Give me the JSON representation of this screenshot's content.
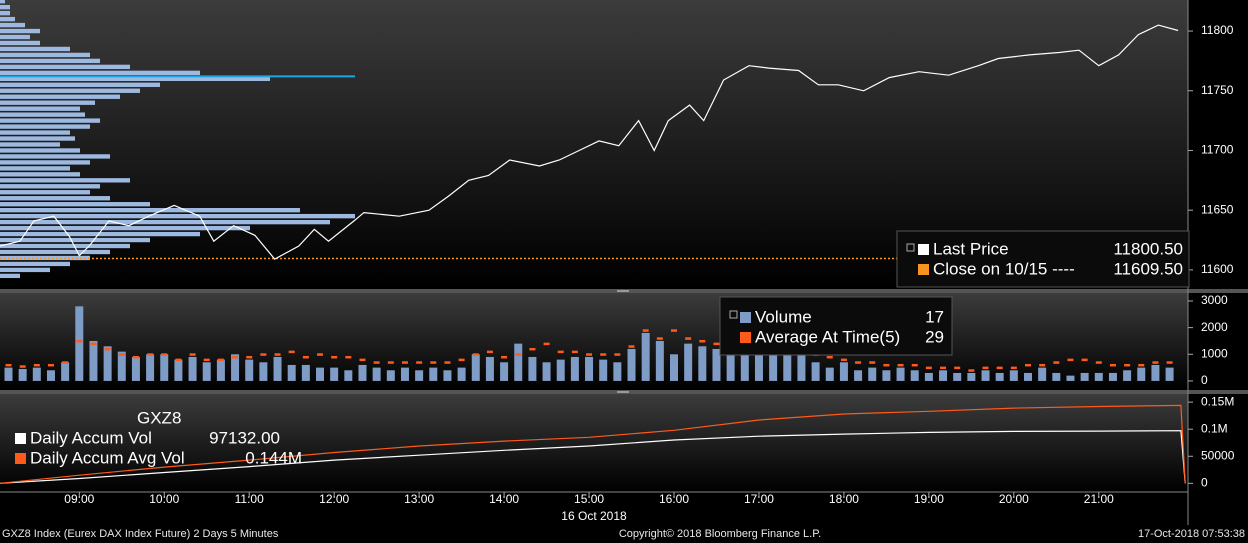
{
  "chart_data": [
    {
      "type": "line",
      "x": [
        "08:04",
        "08:18",
        "08:28",
        "08:42",
        "08:53",
        "09:00",
        "09:07",
        "09:21",
        "09:35",
        "09:49",
        "10:07",
        "10:25",
        "10:35",
        "10:49",
        "11:04",
        "11:18",
        "11:35",
        "11:46",
        "11:56",
        "12:14",
        "12:21",
        "12:46",
        "13:07",
        "13:21",
        "13:35",
        "13:49",
        "14:04",
        "14:25",
        "14:39",
        "14:53",
        "15:07",
        "15:21",
        "15:35",
        "15:46",
        "15:56",
        "16:11",
        "16:21",
        "16:35",
        "16:53",
        "17:07",
        "17:28",
        "17:42",
        "17:56",
        "18:14",
        "18:32",
        "18:53",
        "19:14",
        "19:35",
        "19:49",
        "20:11",
        "20:32",
        "20:46",
        "21:00",
        "21:14",
        "21:28",
        "21:42",
        "21:56"
      ],
      "series": [
        {
          "name": "Last Price",
          "color": "#ffffff",
          "legend_value": "11800.50",
          "values": [
            11620,
            11624,
            11641,
            11645,
            11628,
            11612,
            11620,
            11641,
            11637,
            11645,
            11654,
            11645,
            11624,
            11637,
            11629,
            11609,
            11620,
            11634,
            11624,
            11641,
            11648,
            11645,
            11650,
            11662,
            11675,
            11679,
            11692,
            11687,
            11692,
            11700,
            11708,
            11704,
            11725,
            11700,
            11725,
            11738,
            11725,
            11759,
            11771,
            11769,
            11767,
            11755,
            11755,
            11750,
            11761,
            11766,
            11763,
            11771,
            11777,
            11780,
            11782,
            11784,
            11771,
            11780,
            11797,
            11805,
            11800.5
          ]
        }
      ],
      "reference_lines": [
        {
          "name": "Close on 10/15 ----",
          "color": "#f7931e",
          "value": 11609.5,
          "legend_value": "11609.50"
        }
      ],
      "volume_profile": {
        "color": "#9db9e0",
        "prices": [
          11595,
          11600,
          11605,
          11610,
          11615,
          11620,
          11625,
          11630,
          11635,
          11640,
          11645,
          11650,
          11655,
          11660,
          11665,
          11670,
          11675,
          11680,
          11685,
          11690,
          11695,
          11700,
          11705,
          11710,
          11715,
          11720,
          11725,
          11730,
          11735,
          11740,
          11745,
          11750,
          11755,
          11760,
          11765,
          11770,
          11775,
          11780,
          11785,
          11790,
          11795,
          11800,
          11805,
          11810,
          11815,
          11820,
          11825
        ],
        "values": [
          20,
          50,
          70,
          90,
          110,
          130,
          150,
          200,
          250,
          330,
          355,
          300,
          150,
          110,
          90,
          100,
          130,
          80,
          70,
          90,
          110,
          80,
          60,
          75,
          70,
          90,
          100,
          85,
          80,
          95,
          120,
          140,
          160,
          270,
          200,
          130,
          100,
          90,
          70,
          40,
          30,
          40,
          25,
          15,
          10,
          10,
          5
        ]
      },
      "poc": {
        "value": 11762,
        "color": "#1fa5e0"
      },
      "ylim": [
        11584,
        11826
      ],
      "yticks": [
        11600,
        11650,
        11700,
        11750,
        11800
      ]
    },
    {
      "type": "bar",
      "x": [
        "08:10",
        "08:20",
        "08:30",
        "08:40",
        "08:50",
        "09:00",
        "09:10",
        "09:20",
        "09:30",
        "09:40",
        "09:50",
        "10:00",
        "10:10",
        "10:20",
        "10:30",
        "10:40",
        "10:50",
        "11:00",
        "11:10",
        "11:20",
        "11:30",
        "11:40",
        "11:50",
        "12:00",
        "12:10",
        "12:20",
        "12:30",
        "12:40",
        "12:50",
        "13:00",
        "13:10",
        "13:20",
        "13:30",
        "13:40",
        "13:50",
        "14:00",
        "14:10",
        "14:20",
        "14:30",
        "14:40",
        "14:50",
        "15:00",
        "15:10",
        "15:20",
        "15:30",
        "15:40",
        "15:50",
        "16:00",
        "16:10",
        "16:20",
        "16:30",
        "16:40",
        "16:50",
        "17:00",
        "17:10",
        "17:20",
        "17:30",
        "17:40",
        "17:50",
        "18:00",
        "18:10",
        "18:20",
        "18:30",
        "18:40",
        "18:50",
        "19:00",
        "19:10",
        "19:20",
        "19:30",
        "19:40",
        "19:50",
        "20:00",
        "20:10",
        "20:20",
        "20:30",
        "20:40",
        "20:50",
        "21:00",
        "21:10",
        "21:20",
        "21:30",
        "21:40",
        "21:50"
      ],
      "series": [
        {
          "name": "Volume",
          "color": "#7f9cc6",
          "legend_value": "17",
          "values": [
            500,
            450,
            500,
            400,
            700,
            2800,
            1500,
            1300,
            1100,
            900,
            1000,
            1000,
            800,
            900,
            700,
            800,
            1000,
            800,
            700,
            900,
            600,
            600,
            500,
            500,
            400,
            600,
            500,
            400,
            500,
            400,
            500,
            400,
            500,
            1000,
            900,
            700,
            1400,
            900,
            700,
            800,
            900,
            900,
            800,
            700,
            1200,
            1800,
            1500,
            1000,
            1400,
            1300,
            1200,
            1100,
            1500,
            1100,
            1200,
            2000,
            1400,
            700,
            500,
            700,
            400,
            500,
            400,
            500,
            400,
            300,
            400,
            300,
            300,
            400,
            300,
            400,
            300,
            500,
            300,
            200,
            300,
            300,
            300,
            400,
            500,
            600,
            500
          ]
        },
        {
          "name": "Average At Time(5)",
          "color": "#ff5a1a",
          "legend_value": "29",
          "values": [
            600,
            550,
            600,
            600,
            700,
            1500,
            1400,
            1200,
            1000,
            900,
            1000,
            1000,
            800,
            1000,
            800,
            800,
            900,
            900,
            1000,
            1000,
            1100,
            900,
            1000,
            900,
            900,
            800,
            700,
            700,
            700,
            700,
            700,
            700,
            800,
            1000,
            1100,
            900,
            1000,
            1200,
            1400,
            1100,
            1100,
            1000,
            1000,
            1000,
            1300,
            1900,
            1600,
            1900,
            1600,
            1500,
            1400,
            1600,
            1700,
            1600,
            1400,
            1500,
            1300,
            1000,
            900,
            800,
            700,
            700,
            600,
            600,
            600,
            500,
            500,
            500,
            400,
            500,
            500,
            500,
            600,
            600,
            700,
            800,
            800,
            700,
            600,
            600,
            600,
            700,
            700
          ]
        }
      ],
      "ylim": [
        -340,
        3300
      ],
      "yticks": [
        0,
        1000,
        2000,
        3000
      ]
    },
    {
      "type": "line",
      "title": "GXZ8",
      "x": [
        "08:04",
        "09:00",
        "10:00",
        "11:00",
        "12:00",
        "13:00",
        "14:00",
        "15:00",
        "16:00",
        "17:00",
        "18:00",
        "19:00",
        "20:00",
        "21:00",
        "21:58",
        "22:01"
      ],
      "series": [
        {
          "name": "Daily Accum Vol",
          "color": "#ffffff",
          "legend_value": "97132.00",
          "values": [
            0,
            9000,
            20000,
            31000,
            43000,
            52000,
            61000,
            69000,
            80000,
            87000,
            91000,
            94000,
            96000,
            96500,
            97132,
            0
          ]
        },
        {
          "name": "Daily Accum Avg Vol",
          "color": "#ff5a1a",
          "legend_value": "0.144M",
          "values": [
            0,
            15000,
            30000,
            43000,
            57000,
            69000,
            78000,
            85000,
            98000,
            117000,
            128000,
            133000,
            139000,
            142000,
            144000,
            0
          ]
        }
      ],
      "ylim": [
        -16000,
        165000
      ],
      "yticks": [
        0,
        50000,
        {
          "value": 100000,
          "label": "0.1M"
        },
        {
          "value": 150000,
          "label": "0.15M"
        }
      ]
    }
  ],
  "x_axis": {
    "xlim": [
      "08:04",
      "22:03"
    ],
    "xticks": [
      "09:00",
      "10:00",
      "11:00",
      "12:00",
      "13:00",
      "14:00",
      "15:00",
      "16:00",
      "17:00",
      "18:00",
      "19:00",
      "20:00",
      "21:00"
    ],
    "date_label": "16 Oct 2018"
  },
  "footer": {
    "left": "GXZ8 Index (Eurex DAX Index Future) 2 Days 5 Minutes",
    "center": "Copyright© 2018 Bloomberg Finance L.P.",
    "right": "17-Oct-2018 07:53:38"
  }
}
